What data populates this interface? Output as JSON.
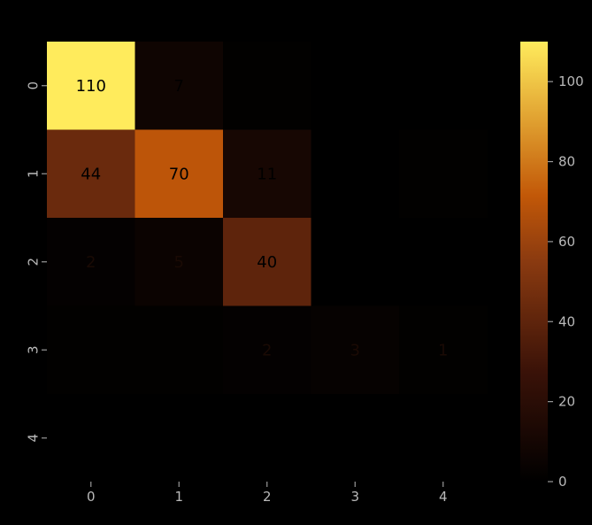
{
  "chart_data": {
    "type": "heatmap",
    "title": "",
    "xlabel": "",
    "ylabel": "",
    "x_categories": [
      "0",
      "1",
      "2",
      "3",
      "4"
    ],
    "y_categories": [
      "0",
      "1",
      "2",
      "3",
      "4"
    ],
    "values": [
      [
        110,
        7,
        1,
        0,
        0
      ],
      [
        44,
        70,
        11,
        0,
        1
      ],
      [
        2,
        5,
        40,
        0,
        0
      ],
      [
        1,
        1,
        2,
        3,
        1
      ],
      [
        0,
        0,
        0,
        0,
        0
      ]
    ],
    "cell_labels": [
      [
        "110",
        "7",
        "",
        "",
        ""
      ],
      [
        "44",
        "70",
        "11",
        "",
        ""
      ],
      [
        "2",
        "5",
        "40",
        "",
        ""
      ],
      [
        "",
        "",
        "2",
        "3",
        "1"
      ],
      [
        "",
        "",
        "",
        "",
        ""
      ]
    ],
    "colormap": "afmhot",
    "colorbar": {
      "vmin": 0,
      "vmax": 110,
      "ticks": [
        0,
        20,
        40,
        60,
        80,
        100
      ],
      "tick_labels": [
        "0",
        "20",
        "40",
        "60",
        "80",
        "100"
      ]
    },
    "colors": {
      "background": "#000000",
      "tick_label": "#b9b9b9",
      "tick_line": "#9a9a9a"
    }
  }
}
